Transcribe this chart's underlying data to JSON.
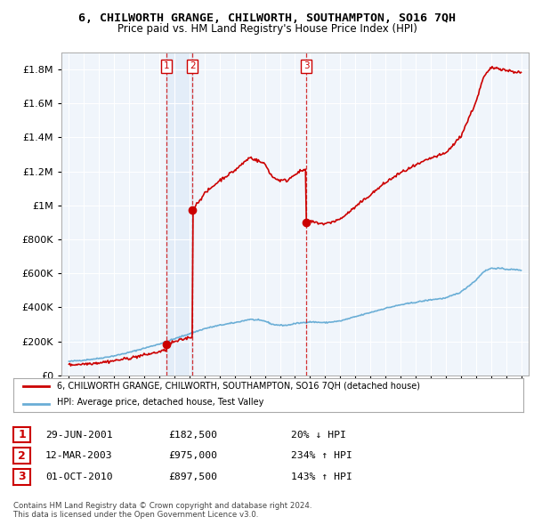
{
  "title": "6, CHILWORTH GRANGE, CHILWORTH, SOUTHAMPTON, SO16 7QH",
  "subtitle": "Price paid vs. HM Land Registry's House Price Index (HPI)",
  "property_label": "6, CHILWORTH GRANGE, CHILWORTH, SOUTHAMPTON, SO16 7QH (detached house)",
  "hpi_label": "HPI: Average price, detached house, Test Valley",
  "property_color": "#cc0000",
  "hpi_color": "#6aaed6",
  "transactions": [
    {
      "number": 1,
      "date": "29-JUN-2001",
      "date_float": 2001.49,
      "price": 182500,
      "hpi_pct": "20% ↓ HPI"
    },
    {
      "number": 2,
      "date": "12-MAR-2003",
      "date_float": 2003.19,
      "price": 975000,
      "hpi_pct": "234% ↑ HPI"
    },
    {
      "number": 3,
      "date": "01-OCT-2010",
      "date_float": 2010.75,
      "price": 897500,
      "hpi_pct": "143% ↑ HPI"
    }
  ],
  "footer": "Contains HM Land Registry data © Crown copyright and database right 2024.\nThis data is licensed under the Open Government Licence v3.0.",
  "ylim": [
    0,
    1900000
  ],
  "xlim": [
    1994.5,
    2025.5
  ],
  "shade_between_tx1_tx2": true
}
